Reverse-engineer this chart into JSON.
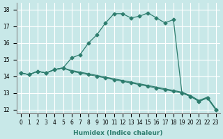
{
  "xlabel": "Humidex (Indice chaleur)",
  "ylabel": "",
  "background_color": "#c8e8e8",
  "grid_color": "#ffffff",
  "line_color": "#2e7d6e",
  "xlim": [
    -0.5,
    23.5
  ],
  "ylim": [
    11.8,
    18.4
  ],
  "yticks": [
    12,
    13,
    14,
    15,
    16,
    17,
    18
  ],
  "xticks": [
    0,
    1,
    2,
    3,
    4,
    5,
    6,
    7,
    8,
    9,
    10,
    11,
    12,
    13,
    14,
    15,
    16,
    17,
    18,
    19,
    20,
    21,
    22,
    23
  ],
  "curve1_x": [
    0,
    1,
    2,
    3,
    4,
    5,
    6,
    7,
    8,
    9,
    10,
    11,
    12,
    13,
    14,
    15,
    16,
    17,
    18,
    19,
    20,
    21,
    22,
    23
  ],
  "curve1_y": [
    14.2,
    14.1,
    14.3,
    14.2,
    14.4,
    14.5,
    15.1,
    15.3,
    16.0,
    16.5,
    17.2,
    17.75,
    17.75,
    17.5,
    17.6,
    17.8,
    17.5,
    17.2,
    17.4,
    13.0,
    12.8,
    12.5,
    12.7,
    12.0
  ],
  "curve2_x": [
    0,
    1,
    2,
    3,
    4,
    5,
    6,
    7,
    8,
    9,
    10,
    11,
    12,
    13,
    14,
    15,
    16,
    17,
    18,
    19,
    20,
    21,
    22,
    23
  ],
  "curve2_y": [
    14.2,
    14.1,
    14.3,
    14.2,
    14.4,
    14.5,
    14.3,
    14.2,
    14.1,
    14.0,
    13.9,
    13.8,
    13.7,
    13.6,
    13.5,
    13.4,
    13.3,
    13.2,
    13.1,
    13.0,
    12.8,
    12.5,
    12.7,
    12.0
  ],
  "curve3_x": [
    0,
    1,
    2,
    3,
    4,
    5,
    6,
    7,
    8,
    9,
    10,
    11,
    12,
    13,
    14,
    15,
    16,
    17,
    18,
    19,
    20,
    21,
    22,
    23
  ],
  "curve3_y": [
    14.2,
    14.1,
    14.3,
    14.2,
    14.4,
    14.5,
    14.35,
    14.25,
    14.15,
    14.05,
    13.95,
    13.85,
    13.75,
    13.65,
    13.55,
    13.45,
    13.35,
    13.25,
    13.15,
    13.05,
    12.85,
    12.55,
    12.75,
    12.05
  ]
}
